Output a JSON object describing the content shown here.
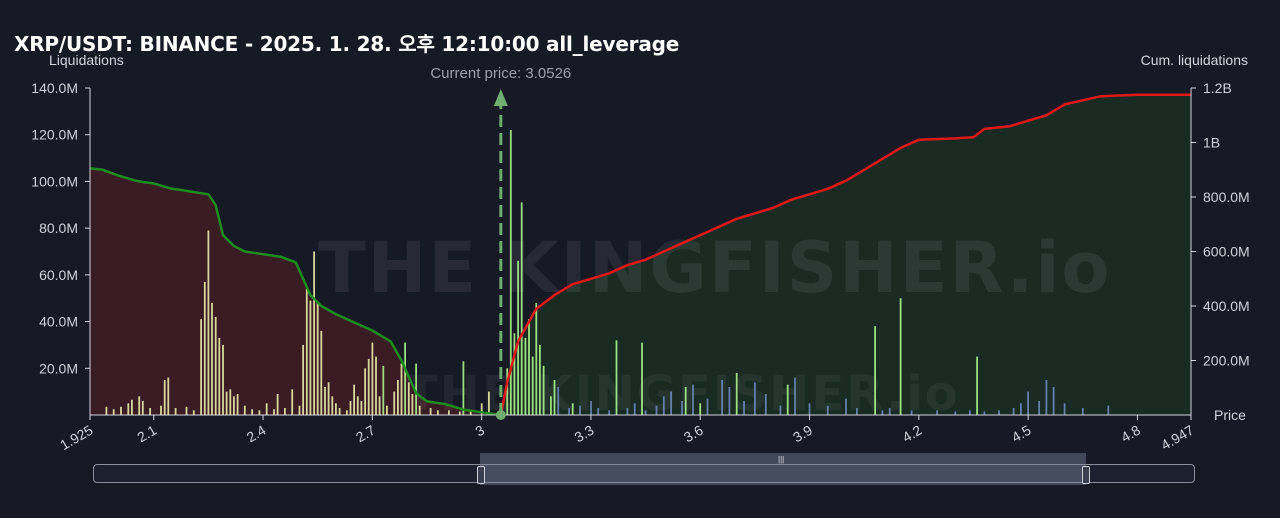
{
  "title": "XRP/USDT: BINANCE - 2025. 1. 28. 오후 12:10:00 all_leverage",
  "left_axis_title": "Liquidations",
  "right_axis_title": "Cum. liquidations",
  "x_axis_title": "Price",
  "current_price_label": "Current price: 3.0526",
  "watermark": "THE KINGFISHER.io",
  "colors": {
    "background": "#161a25",
    "short_cum_line": "#1f8c1f",
    "long_cum_line": "#e01818",
    "short_fill": "#3a1c24",
    "long_fill": "#1a2b24",
    "bar_yellow": "#e6e6a6",
    "bar_green": "#a8f08a",
    "bar_blue": "#6b86b8",
    "current_price_marker": "#6fae6f"
  },
  "chart_data": {
    "type": "bar+line",
    "title": "XRP/USDT: BINANCE - 2025. 1. 28. 오후 12:10:00 all_leverage",
    "xlabel": "Price",
    "ylabel_left": "Liquidations",
    "ylabel_right": "Cum. liquidations",
    "xlim": [
      1.925,
      4.947
    ],
    "ylim_left": [
      0,
      140000000
    ],
    "ylim_right": [
      0,
      1200000000
    ],
    "x_ticks": [
      "1.925",
      "2.1",
      "2.4",
      "2.7",
      "3",
      "3.3",
      "3.6",
      "3.9",
      "4.2",
      "4.5",
      "4.8",
      "4.947"
    ],
    "x_tick_values": [
      1.925,
      2.1,
      2.4,
      2.7,
      3.0,
      3.3,
      3.6,
      3.9,
      4.2,
      4.5,
      4.8,
      4.947
    ],
    "y_left_ticks": [
      "20.0M",
      "40.0M",
      "60.0M",
      "80.0M",
      "100.0M",
      "120.0M",
      "140.0M"
    ],
    "y_left_tick_values": [
      20000000,
      40000000,
      60000000,
      80000000,
      100000000,
      120000000,
      140000000
    ],
    "y_right_ticks": [
      "200.0M",
      "400.0M",
      "600.0M",
      "800.0M",
      "1B",
      "1.2B"
    ],
    "y_right_tick_values": [
      200000000,
      400000000,
      600000000,
      800000000,
      1000000000,
      1200000000
    ],
    "current_price": 3.0526,
    "series": [
      {
        "kind": "line",
        "side": "short",
        "points": [
          [
            1.925,
            905000000
          ],
          [
            1.96,
            900000000
          ],
          [
            2.0,
            880000000
          ],
          [
            2.05,
            860000000
          ],
          [
            2.07,
            855000000
          ],
          [
            2.1,
            850000000
          ],
          [
            2.15,
            830000000
          ],
          [
            2.18,
            825000000
          ],
          [
            2.2,
            820000000
          ],
          [
            2.25,
            810000000
          ],
          [
            2.27,
            770000000
          ],
          [
            2.29,
            660000000
          ],
          [
            2.32,
            620000000
          ],
          [
            2.35,
            600000000
          ],
          [
            2.4,
            590000000
          ],
          [
            2.45,
            580000000
          ],
          [
            2.49,
            560000000
          ],
          [
            2.51,
            500000000
          ],
          [
            2.53,
            440000000
          ],
          [
            2.56,
            400000000
          ],
          [
            2.6,
            370000000
          ],
          [
            2.65,
            340000000
          ],
          [
            2.7,
            310000000
          ],
          [
            2.75,
            270000000
          ],
          [
            2.78,
            200000000
          ],
          [
            2.8,
            140000000
          ],
          [
            2.82,
            80000000
          ],
          [
            2.85,
            50000000
          ],
          [
            2.9,
            40000000
          ],
          [
            2.95,
            20000000
          ],
          [
            3.0,
            10000000
          ],
          [
            3.0526,
            0
          ]
        ]
      },
      {
        "kind": "line",
        "side": "long",
        "points": [
          [
            3.0526,
            0
          ],
          [
            3.07,
            120000000
          ],
          [
            3.1,
            270000000
          ],
          [
            3.15,
            390000000
          ],
          [
            3.2,
            440000000
          ],
          [
            3.25,
            480000000
          ],
          [
            3.3,
            500000000
          ],
          [
            3.35,
            520000000
          ],
          [
            3.4,
            550000000
          ],
          [
            3.45,
            570000000
          ],
          [
            3.5,
            600000000
          ],
          [
            3.55,
            630000000
          ],
          [
            3.6,
            660000000
          ],
          [
            3.65,
            690000000
          ],
          [
            3.7,
            720000000
          ],
          [
            3.8,
            760000000
          ],
          [
            3.85,
            790000000
          ],
          [
            3.9,
            810000000
          ],
          [
            3.95,
            830000000
          ],
          [
            4.0,
            860000000
          ],
          [
            4.05,
            900000000
          ],
          [
            4.1,
            940000000
          ],
          [
            4.15,
            980000000
          ],
          [
            4.2,
            1010000000
          ],
          [
            4.3,
            1015000000
          ],
          [
            4.35,
            1020000000
          ],
          [
            4.38,
            1050000000
          ],
          [
            4.45,
            1060000000
          ],
          [
            4.5,
            1080000000
          ],
          [
            4.55,
            1100000000
          ],
          [
            4.6,
            1140000000
          ],
          [
            4.7,
            1170000000
          ],
          [
            4.8,
            1175000000
          ],
          [
            4.947,
            1175000000
          ]
        ]
      },
      {
        "kind": "bars",
        "side": "short",
        "color": "yellow",
        "points": [
          [
            1.97,
            3500000
          ],
          [
            1.99,
            2500000
          ],
          [
            2.01,
            3500000
          ],
          [
            2.03,
            5000000
          ],
          [
            2.04,
            6500000
          ],
          [
            2.06,
            8000000
          ],
          [
            2.07,
            6000000
          ],
          [
            2.09,
            3000000
          ],
          [
            2.12,
            4000000
          ],
          [
            2.13,
            15000000
          ],
          [
            2.14,
            16000000
          ],
          [
            2.16,
            3000000
          ],
          [
            2.19,
            3500000
          ],
          [
            2.21,
            2000000
          ],
          [
            2.23,
            41000000
          ],
          [
            2.24,
            57000000
          ],
          [
            2.25,
            79000000
          ],
          [
            2.26,
            48000000
          ],
          [
            2.27,
            42000000
          ],
          [
            2.28,
            33000000
          ],
          [
            2.29,
            30000000
          ],
          [
            2.3,
            10000000
          ],
          [
            2.31,
            11000000
          ],
          [
            2.32,
            8000000
          ],
          [
            2.33,
            9000000
          ],
          [
            2.35,
            4000000
          ],
          [
            2.37,
            2500000
          ],
          [
            2.39,
            2000000
          ],
          [
            2.41,
            5000000
          ],
          [
            2.43,
            2500000
          ],
          [
            2.44,
            9000000
          ],
          [
            2.46,
            3000000
          ],
          [
            2.48,
            11000000
          ],
          [
            2.5,
            4000000
          ],
          [
            2.51,
            30000000
          ],
          [
            2.52,
            54000000
          ],
          [
            2.53,
            49000000
          ],
          [
            2.54,
            70000000
          ],
          [
            2.55,
            48000000
          ],
          [
            2.56,
            36000000
          ],
          [
            2.57,
            12000000
          ],
          [
            2.58,
            14000000
          ],
          [
            2.59,
            8000000
          ],
          [
            2.6,
            5000000
          ],
          [
            2.61,
            3000000
          ],
          [
            2.63,
            2000000
          ],
          [
            2.64,
            6000000
          ],
          [
            2.65,
            13000000
          ],
          [
            2.66,
            8000000
          ],
          [
            2.67,
            6000000
          ],
          [
            2.68,
            20000000
          ],
          [
            2.69,
            24000000
          ],
          [
            2.7,
            31000000
          ],
          [
            2.71,
            25000000
          ],
          [
            2.72,
            8000000
          ],
          [
            2.74,
            4000000
          ],
          [
            2.76,
            10000000
          ],
          [
            2.77,
            15000000
          ],
          [
            2.78,
            22000000
          ],
          [
            2.8,
            14000000
          ],
          [
            2.81,
            9000000
          ],
          [
            2.83,
            4000000
          ],
          [
            2.86,
            3000000
          ],
          [
            2.88,
            2000000
          ],
          [
            2.91,
            2000000
          ],
          [
            2.94,
            1500000
          ],
          [
            2.97,
            1500000
          ],
          [
            3.0,
            5000000
          ],
          [
            3.02,
            10000000
          ]
        ]
      },
      {
        "kind": "bars",
        "side": "short",
        "color": "green",
        "points": [
          [
            2.73,
            21000000
          ],
          [
            2.79,
            31000000
          ],
          [
            2.82,
            22000000
          ],
          [
            2.95,
            23000000
          ]
        ]
      },
      {
        "kind": "bars",
        "side": "long",
        "color": "green",
        "points": [
          [
            3.07,
            20000000
          ],
          [
            3.08,
            122000000
          ],
          [
            3.09,
            35000000
          ],
          [
            3.1,
            66000000
          ],
          [
            3.11,
            91000000
          ],
          [
            3.12,
            33000000
          ],
          [
            3.13,
            41000000
          ],
          [
            3.14,
            25000000
          ],
          [
            3.15,
            48000000
          ],
          [
            3.16,
            30000000
          ],
          [
            3.17,
            21000000
          ],
          [
            3.19,
            8000000
          ],
          [
            3.2,
            15000000
          ],
          [
            3.25,
            5000000
          ],
          [
            3.37,
            32000000
          ],
          [
            3.44,
            31000000
          ],
          [
            3.56,
            12000000
          ],
          [
            3.6,
            5000000
          ],
          [
            3.7,
            18000000
          ],
          [
            3.84,
            13000000
          ],
          [
            4.08,
            38000000
          ],
          [
            4.15,
            50000000
          ],
          [
            4.36,
            25000000
          ]
        ]
      },
      {
        "kind": "bars",
        "side": "long",
        "color": "blue",
        "points": [
          [
            3.21,
            12000000
          ],
          [
            3.24,
            3000000
          ],
          [
            3.27,
            4000000
          ],
          [
            3.3,
            6000000
          ],
          [
            3.32,
            3000000
          ],
          [
            3.35,
            2000000
          ],
          [
            3.4,
            3000000
          ],
          [
            3.42,
            5000000
          ],
          [
            3.45,
            2000000
          ],
          [
            3.48,
            4000000
          ],
          [
            3.5,
            8000000
          ],
          [
            3.52,
            10000000
          ],
          [
            3.55,
            6000000
          ],
          [
            3.58,
            13000000
          ],
          [
            3.62,
            7000000
          ],
          [
            3.66,
            15000000
          ],
          [
            3.68,
            12000000
          ],
          [
            3.72,
            6000000
          ],
          [
            3.75,
            14000000
          ],
          [
            3.78,
            9000000
          ],
          [
            3.82,
            4000000
          ],
          [
            3.86,
            16000000
          ],
          [
            3.9,
            5000000
          ],
          [
            3.95,
            4000000
          ],
          [
            4.0,
            7000000
          ],
          [
            4.03,
            3000000
          ],
          [
            4.1,
            2000000
          ],
          [
            4.12,
            3000000
          ],
          [
            4.18,
            2000000
          ],
          [
            4.25,
            2000000
          ],
          [
            4.3,
            1500000
          ],
          [
            4.34,
            2000000
          ],
          [
            4.38,
            1500000
          ],
          [
            4.42,
            2000000
          ],
          [
            4.46,
            3000000
          ],
          [
            4.48,
            5000000
          ],
          [
            4.5,
            10000000
          ],
          [
            4.53,
            6000000
          ],
          [
            4.55,
            15000000
          ],
          [
            4.57,
            12000000
          ],
          [
            4.6,
            5000000
          ],
          [
            4.65,
            3000000
          ],
          [
            4.72,
            4000000
          ]
        ]
      }
    ]
  }
}
